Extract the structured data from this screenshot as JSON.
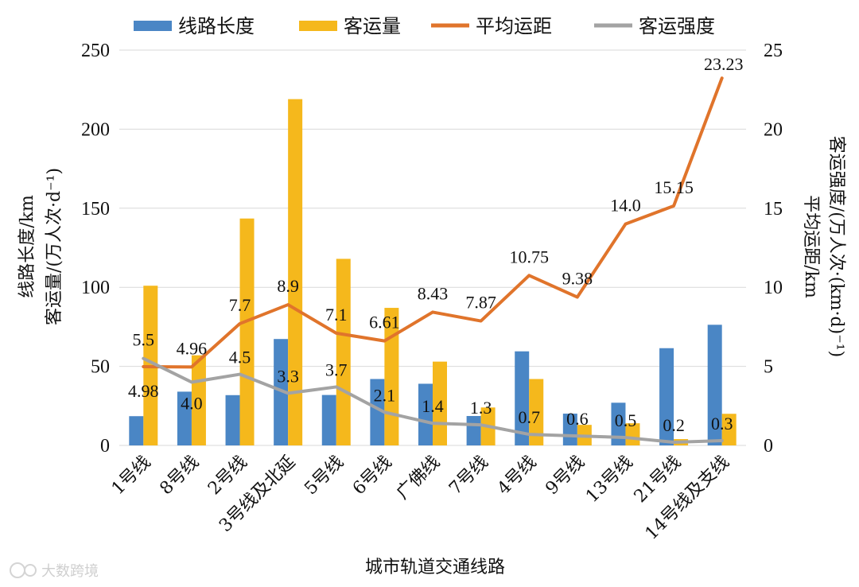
{
  "chart_data": {
    "type": "bar",
    "categories": [
      "1号线",
      "8号线",
      "2号线",
      "3号线及北延",
      "5号线",
      "6号线",
      "广佛线",
      "7号线",
      "4号线",
      "9号线",
      "13号线",
      "21号线",
      "14号线及支线"
    ],
    "series": [
      {
        "name": "线路长度",
        "type": "bar",
        "axis": "left",
        "color": "#4a86c5",
        "values": [
          18.5,
          34,
          31.8,
          67.3,
          31.9,
          42,
          39,
          18.6,
          59.5,
          20.1,
          27,
          61.5,
          76.3
        ]
      },
      {
        "name": "客运量",
        "type": "bar",
        "axis": "left",
        "color": "#f5b81c",
        "values": [
          101,
          57,
          143.5,
          219,
          118,
          87,
          53,
          24,
          42,
          13,
          14,
          4,
          20
        ]
      },
      {
        "name": "平均运距",
        "type": "line",
        "axis": "right",
        "color": "#e0742b",
        "values": [
          4.98,
          4.96,
          7.7,
          8.9,
          7.1,
          6.61,
          8.43,
          7.87,
          10.75,
          9.38,
          14.0,
          15.15,
          23.23
        ],
        "labels": [
          "4.98",
          "4.96",
          "7.7",
          "8.9",
          "7.1",
          "6.61",
          "8.43",
          "7.87",
          "10.75",
          "9.38",
          "14.0",
          "15.15",
          "23.23"
        ]
      },
      {
        "name": "客运强度",
        "type": "line",
        "axis": "right",
        "color": "#a3a3a3",
        "values": [
          5.5,
          4.0,
          4.5,
          3.3,
          3.7,
          2.1,
          1.4,
          1.3,
          0.7,
          0.6,
          0.5,
          0.2,
          0.3
        ],
        "labels": [
          "5.5",
          "4.0",
          "4.5",
          "3.3",
          "3.7",
          "2.1",
          "1.4",
          "1.3",
          "0.7",
          "0.6",
          "0.5",
          "0.2",
          "0.3"
        ]
      }
    ],
    "left_axis": {
      "min": 0,
      "max": 250,
      "ticks": [
        "0",
        "50",
        "100",
        "150",
        "200",
        "250"
      ],
      "title_lines": [
        "线路长度/km",
        "客运量/(万人次·d⁻¹)"
      ]
    },
    "right_axis": {
      "min": 0,
      "max": 25,
      "ticks": [
        "0",
        "5",
        "10",
        "15",
        "20",
        "25"
      ],
      "title_lines": [
        "客运强度/(万人次·(km·d)⁻¹)",
        "平均运距/km"
      ]
    },
    "xlabel": "城市轨道交通线路",
    "legend_position": "top",
    "grid": "horizontal"
  },
  "watermark": "大数跨境"
}
